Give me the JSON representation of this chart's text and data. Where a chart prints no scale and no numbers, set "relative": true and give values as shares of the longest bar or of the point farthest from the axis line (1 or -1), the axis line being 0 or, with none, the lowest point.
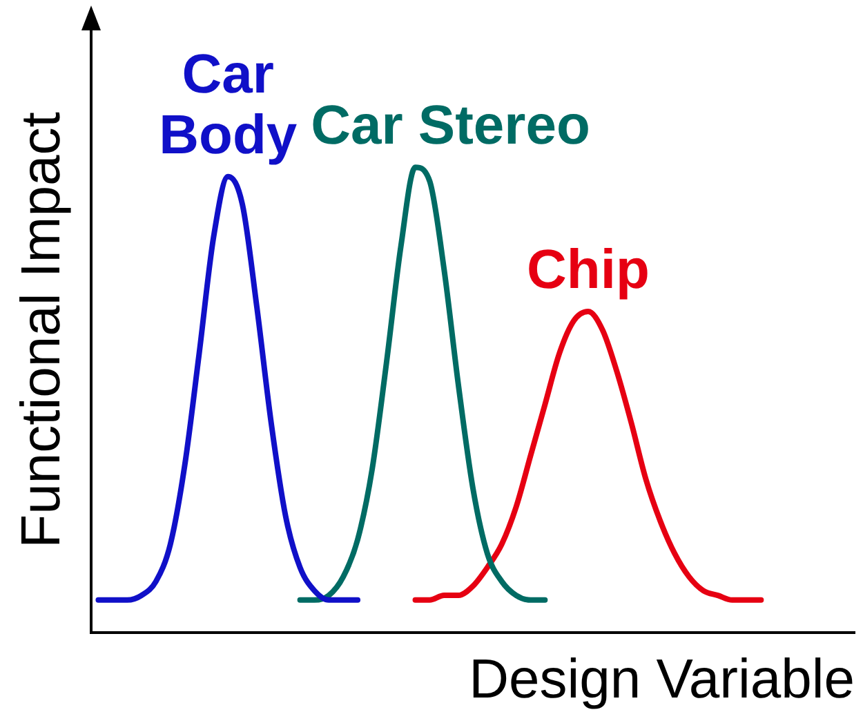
{
  "chart_data": {
    "type": "line",
    "relative": true,
    "xlabel": "Design Variable",
    "ylabel": "Functional Impact",
    "legend": false,
    "grid": false,
    "marker": "none",
    "line_style": "solid",
    "categories": [
      null,
      null,
      null,
      null,
      null,
      null,
      null,
      null,
      null,
      null,
      null,
      null,
      null,
      null,
      null,
      null,
      null,
      null,
      null,
      null,
      null,
      null,
      null,
      null,
      null,
      null,
      null,
      null,
      null,
      null,
      null,
      null,
      null,
      null,
      null,
      null,
      null,
      null,
      null,
      null,
      null,
      null,
      null,
      null,
      null,
      null,
      null,
      null,
      null,
      null,
      null,
      null,
      null
    ],
    "series": [
      {
        "name": "Car Body",
        "color": "#1010c8",
        "values": [
          0.07,
          0.07,
          0.07,
          0.08,
          0.11,
          0.19,
          0.36,
          0.6,
          0.85,
          0.98,
          0.92,
          0.7,
          0.45,
          0.25,
          0.14,
          0.09,
          0.07,
          0.07,
          0.07,
          null,
          null,
          null,
          null,
          null,
          null,
          null,
          null,
          null,
          null,
          null,
          null,
          null,
          null,
          null,
          null,
          null,
          null,
          null,
          null,
          null,
          null,
          null,
          null,
          null,
          null,
          null,
          null,
          null,
          null,
          null,
          null,
          null,
          null
        ]
      },
      {
        "name": "Car Stereo",
        "color": "#006b64",
        "values": [
          null,
          null,
          null,
          null,
          null,
          null,
          null,
          null,
          null,
          null,
          null,
          null,
          null,
          null,
          0.07,
          0.07,
          0.08,
          0.12,
          0.2,
          0.35,
          0.58,
          0.83,
          1,
          0.97,
          0.78,
          0.53,
          0.31,
          0.17,
          0.11,
          0.08,
          0.07,
          0.07,
          null,
          null,
          null,
          null,
          null,
          null,
          null,
          null,
          null,
          null,
          null,
          null,
          null,
          null,
          null,
          null,
          null,
          null,
          null,
          null,
          null
        ]
      },
      {
        "name": "Chip",
        "color": "#e60012",
        "values": [
          null,
          null,
          null,
          null,
          null,
          null,
          null,
          null,
          null,
          null,
          null,
          null,
          null,
          null,
          null,
          null,
          null,
          null,
          null,
          null,
          null,
          null,
          0.07,
          0.07,
          0.08,
          0.08,
          0.1,
          0.14,
          0.19,
          0.27,
          0.38,
          0.49,
          0.6,
          0.67,
          0.69,
          0.65,
          0.56,
          0.45,
          0.33,
          0.24,
          0.17,
          0.12,
          0.09,
          0.08,
          0.07,
          0.07,
          0.07,
          null,
          null,
          null,
          null,
          null,
          null
        ]
      }
    ]
  }
}
